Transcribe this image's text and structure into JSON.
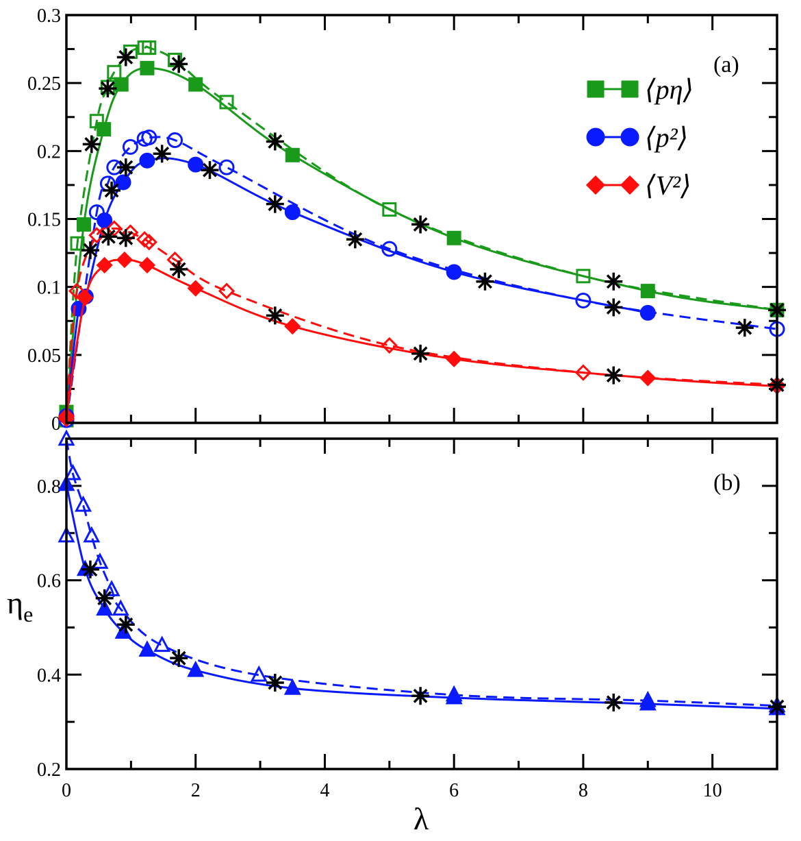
{
  "chart_data": [
    {
      "panel_label": "(a)",
      "type": "line",
      "xlim": [
        0,
        11
      ],
      "ylim": [
        0,
        0.3
      ],
      "x_ticks": [
        "0",
        "2",
        "4",
        "6",
        "8",
        "10"
      ],
      "y_ticks": [
        "0",
        "0.05",
        "0.1",
        "0.15",
        "0.2",
        "0.25",
        "0.3"
      ],
      "legend_placement": "top-right",
      "series": [
        {
          "name": "⟨pη⟩",
          "color": "#1a9a1a",
          "marker": "square",
          "filled": true,
          "dashed": false,
          "x": [
            0,
            0.27,
            0.58,
            0.85,
            1.25,
            2,
            3.5,
            6,
            9,
            11
          ],
          "y": [
            0.008,
            0.146,
            0.216,
            0.249,
            0.261,
            0.249,
            0.197,
            0.136,
            0.097,
            0.083
          ]
        },
        {
          "color": "#1a9a1a",
          "marker": "square",
          "filled": false,
          "dashed": true,
          "x": [
            0,
            0.17,
            0.47,
            0.64,
            0.74,
            0.99,
            1.21,
            1.28,
            1.68,
            2.48,
            5,
            8,
            11
          ],
          "y": [
            0.002,
            0.132,
            0.222,
            0.247,
            0.258,
            0.273,
            0.276,
            0.276,
            0.267,
            0.236,
            0.157,
            0.108,
            0.083
          ]
        },
        {
          "name": "⟨p²⟩",
          "color": "#0a1aff",
          "marker": "circle",
          "filled": true,
          "dashed": false,
          "x": [
            0,
            0.19,
            0.3,
            0.59,
            0.88,
            1.25,
            2,
            3.5,
            6,
            9
          ],
          "y": [
            0.005,
            0.084,
            0.093,
            0.149,
            0.177,
            0.193,
            0.19,
            0.155,
            0.111,
            0.081
          ]
        },
        {
          "color": "#0a1aff",
          "marker": "circle",
          "filled": false,
          "dashed": true,
          "x": [
            0,
            0.47,
            0.64,
            0.74,
            0.99,
            1.21,
            1.28,
            1.68,
            2.48,
            5,
            8,
            11
          ],
          "y": [
            0.002,
            0.155,
            0.176,
            0.188,
            0.203,
            0.209,
            0.21,
            0.208,
            0.188,
            0.128,
            0.09,
            0.069
          ]
        },
        {
          "name": "⟨V²⟩",
          "color": "#ff0d0d",
          "marker": "diamond",
          "filled": true,
          "dashed": false,
          "x": [
            0,
            0.29,
            0.59,
            0.9,
            1.25,
            2,
            3.5,
            6,
            9,
            11
          ],
          "y": [
            0.005,
            0.092,
            0.116,
            0.12,
            0.116,
            0.099,
            0.071,
            0.047,
            0.033,
            0.027
          ]
        },
        {
          "color": "#ff0d0d",
          "marker": "diamond",
          "filled": false,
          "dashed": true,
          "x": [
            0,
            0.16,
            0.47,
            0.74,
            0.99,
            1.21,
            1.28,
            1.68,
            2.48,
            5,
            8,
            11
          ],
          "y": [
            0.003,
            0.097,
            0.138,
            0.143,
            0.14,
            0.135,
            0.133,
            0.12,
            0.097,
            0.057,
            0.037,
            0.028
          ]
        },
        {
          "color": "#000000",
          "marker": "asterisk",
          "filled": false,
          "dashed": false,
          "no_line": true,
          "x": [
            0.39,
            0.64,
            0.92,
            1.74,
            3.23,
            5.48,
            8.47,
            11,
            0.7,
            0.92,
            1.48,
            2.22,
            3.23,
            4.47,
            6.48,
            8.47,
            10.5,
            0.37,
            0.65,
            0.92,
            1.74,
            3.23,
            5.48,
            8.47,
            11
          ],
          "y": [
            0.205,
            0.246,
            0.269,
            0.264,
            0.207,
            0.146,
            0.104,
            0.083,
            0.171,
            0.188,
            0.198,
            0.186,
            0.161,
            0.135,
            0.104,
            0.085,
            0.07,
            0.127,
            0.137,
            0.136,
            0.113,
            0.079,
            0.051,
            0.035,
            0.028
          ]
        }
      ]
    },
    {
      "panel_label": "(b)",
      "type": "line",
      "xlim": [
        0,
        11
      ],
      "ylim": [
        0.2,
        0.9
      ],
      "xlabel": "λ",
      "ylabel": "η",
      "ylabel_sub": "e",
      "x_ticks": [
        "0",
        "2",
        "4",
        "6",
        "8",
        "10"
      ],
      "y_ticks": [
        "0.2",
        "0.4",
        "0.6",
        "0.8"
      ],
      "series": [
        {
          "color": "#0a1aff",
          "marker": "triangle",
          "filled": true,
          "dashed": false,
          "x": [
            0,
            0.29,
            0.59,
            0.88,
            1.25,
            2,
            3.5,
            6,
            9,
            11
          ],
          "y": [
            0.803,
            0.623,
            0.539,
            0.49,
            0.452,
            0.409,
            0.371,
            0.351,
            0.338,
            0.328
          ]
        },
        {
          "color": "#0a1aff",
          "marker": "triangle",
          "filled": false,
          "dashed": true,
          "x": [
            0,
            0.1,
            0.26,
            0.39,
            0.52,
            0.7,
            0.84,
            1.48,
            2.98,
            6,
            9,
            11
          ],
          "y": [
            0.899,
            0.826,
            0.759,
            0.694,
            0.638,
            0.58,
            0.539,
            0.462,
            0.399,
            0.357,
            0.345,
            0.334
          ]
        },
        {
          "color": "#0a1aff",
          "marker": "triangle",
          "filled": false,
          "dashed": false,
          "no_line": true,
          "x": [
            0
          ],
          "y": [
            0.694
          ]
        },
        {
          "color": "#000000",
          "marker": "asterisk",
          "filled": false,
          "dashed": false,
          "no_line": true,
          "x": [
            0.37,
            0.59,
            0.92,
            1.74,
            3.23,
            5.48,
            8.47,
            11
          ],
          "y": [
            0.623,
            0.562,
            0.506,
            0.435,
            0.383,
            0.355,
            0.341,
            0.332
          ]
        }
      ]
    }
  ]
}
